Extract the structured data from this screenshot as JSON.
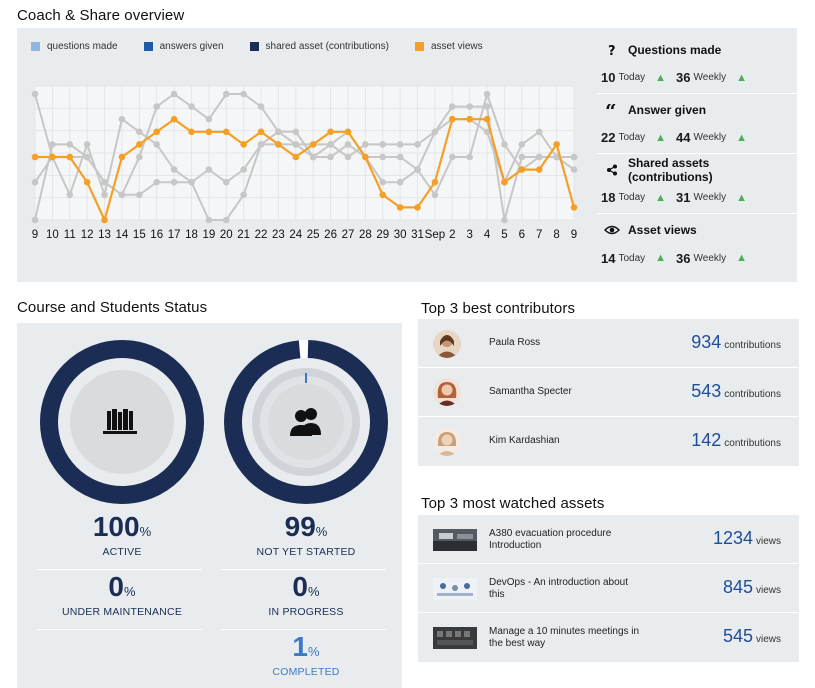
{
  "overview": {
    "title": "Coach & Share overview",
    "legend": [
      {
        "label": "questions made",
        "color": "#8fb8e0"
      },
      {
        "label": "answers given",
        "color": "#1f5aa6"
      },
      {
        "label": "shared asset (contributions)",
        "color": "#1b2d54"
      },
      {
        "label": "asset views",
        "color": "#f5a025"
      }
    ],
    "stats": [
      {
        "icon": "question-icon",
        "title": "Questions made",
        "today_value": "10",
        "today_label": "Today",
        "weekly_value": "36",
        "weekly_label": "Weekly"
      },
      {
        "icon": "quote-icon",
        "title": "Answer given",
        "today_value": "22",
        "today_label": "Today",
        "weekly_value": "44",
        "weekly_label": "Weekly"
      },
      {
        "icon": "share-icon",
        "title": "Shared assets (contributions)",
        "today_value": "18",
        "today_label": "Today",
        "weekly_value": "31",
        "weekly_label": "Weekly"
      },
      {
        "icon": "eye-icon",
        "title": "Asset views",
        "today_value": "14",
        "today_label": "Today",
        "weekly_value": "36",
        "weekly_label": "Weekly"
      }
    ]
  },
  "chart_data": {
    "type": "line",
    "categories": [
      "9",
      "10",
      "11",
      "12",
      "13",
      "14",
      "15",
      "16",
      "17",
      "18",
      "19",
      "20",
      "21",
      "22",
      "23",
      "24",
      "25",
      "26",
      "27",
      "28",
      "29",
      "30",
      "31",
      "Sep",
      "2",
      "3",
      "4",
      "5",
      "6",
      "7",
      "8",
      "9"
    ],
    "x_tick_labels": [
      "9",
      "10",
      "11",
      "12",
      "13",
      "14",
      "15",
      "16",
      "17",
      "18",
      "19",
      "20",
      "21",
      "22",
      "23",
      "24",
      "25",
      "26",
      "27",
      "28",
      "29",
      "30",
      "31",
      "Sep",
      "2",
      "3",
      "4",
      "5",
      "6",
      "7",
      "8",
      "9"
    ],
    "ylim": [
      0,
      10
    ],
    "grid": true,
    "legend_position": "top",
    "series": [
      {
        "name": "questions made",
        "color": "#c7c7c7",
        "values": [
          10,
          5,
          5,
          5,
          3,
          2,
          5,
          9,
          10,
          9,
          8,
          10,
          10,
          9,
          7,
          6,
          5,
          6,
          5,
          6,
          6,
          6,
          6,
          7,
          9,
          9,
          9,
          0,
          5,
          5,
          5,
          5
        ]
      },
      {
        "name": "answers given",
        "color": "#c7c7c7",
        "values": [
          0,
          6,
          6,
          5,
          3,
          2,
          2,
          3,
          3,
          3,
          0,
          0,
          2,
          6,
          7,
          7,
          5,
          5,
          6,
          5,
          5,
          5,
          4,
          2,
          5,
          5,
          10,
          6,
          4,
          5,
          5,
          5
        ]
      },
      {
        "name": "shared asset (contributions)",
        "color": "#c7c7c7",
        "values": [
          3,
          5,
          2,
          6,
          2,
          8,
          7,
          6,
          4,
          3,
          4,
          3,
          4,
          6,
          6,
          6,
          6,
          6,
          7,
          5,
          3,
          3,
          4,
          7,
          8,
          8,
          7,
          3,
          6,
          7,
          5,
          4
        ]
      },
      {
        "name": "asset views",
        "color": "#f5a025",
        "values": [
          5,
          5,
          5,
          3,
          0,
          5,
          6,
          7,
          8,
          7,
          7,
          7,
          6,
          7,
          6,
          5,
          6,
          7,
          7,
          5,
          2,
          1,
          1,
          3,
          8,
          8,
          8,
          3,
          4,
          4,
          6,
          1
        ]
      }
    ]
  },
  "course": {
    "title": "Course and Students Status",
    "rings": [
      {
        "icon": "books-icon",
        "fill_fraction": 1.0
      },
      {
        "icon": "users-icon",
        "fill_fraction": 0.99
      }
    ],
    "kpis": [
      {
        "value": "100",
        "unit": "%",
        "label": "ACTIVE"
      },
      {
        "value": "99",
        "unit": "%",
        "label": "NOT YET STARTED"
      },
      {
        "value": "0",
        "unit": "%",
        "label": "UNDER MAINTENANCE"
      },
      {
        "value": "0",
        "unit": "%",
        "label": "IN PROGRESS"
      },
      {
        "value": "1",
        "unit": "%",
        "label": "COMPLETED"
      }
    ]
  },
  "contributors": {
    "title": "Top 3 best contributors",
    "rows": [
      {
        "name": "Paula Ross",
        "value": "934",
        "unit": "contributions",
        "avatar_color": "#8a5a3b"
      },
      {
        "name": "Samantha Specter",
        "value": "543",
        "unit": "contributions",
        "avatar_color": "#b2623a"
      },
      {
        "name": "Kim Kardashian",
        "value": "142",
        "unit": "contributions",
        "avatar_color": "#c9a07a"
      }
    ]
  },
  "assets": {
    "title": "Top 3 most watched assets",
    "rows": [
      {
        "name": "A380 evacuation procedure Introduction",
        "value": "1234",
        "unit": "views",
        "thumb_color": "#555a60"
      },
      {
        "name": "DevOps - An introduction about this",
        "value": "845",
        "unit": "views",
        "thumb_color": "#9fb4cc"
      },
      {
        "name": "Manage a 10 minutes meetings in the best way",
        "value": "545",
        "unit": "views",
        "thumb_color": "#3a3a3a"
      }
    ]
  }
}
